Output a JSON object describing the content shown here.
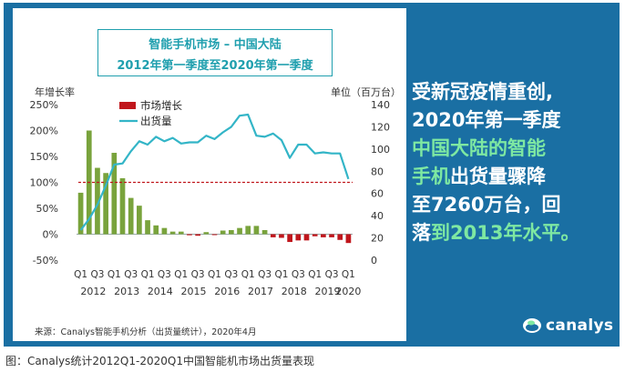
{
  "title": {
    "line1": "智能手机市场 – 中国大陆",
    "line2": "2012年第一季度至2020年第一季度"
  },
  "right_text": {
    "line1": "受新冠疫情重创,",
    "line2": "2020年第一季度",
    "line3": "中国大陆的智能",
    "line4a": "手机",
    "line4b": "出货量骤降",
    "line5": "至7260万台，回",
    "line6a": "落",
    "line6b": "到2013年水平。"
  },
  "source": "来源：Canalys智能手机分析（出货量统计），2020年4月",
  "logo": "canalys",
  "caption": "图：Canalys统计2012Q1-2020Q1中国智能机市场出货量表现",
  "colors": {
    "frame": "#1a6fa3",
    "bar_positive": "#79a33c",
    "bar_negative": "#c0161c",
    "line": "#33b5c7",
    "reference": "#c0161c",
    "title": "#1f9fae",
    "highlight": "#7ee8a2"
  },
  "chart_data": {
    "type": "bar",
    "left_axis": {
      "label": "年增长率",
      "min": -50,
      "max": 250,
      "ticks": [
        "-50%",
        "0%",
        "50%",
        "100%",
        "150%",
        "200%",
        "250%"
      ],
      "tick_values": [
        -50,
        0,
        50,
        100,
        150,
        200,
        250
      ]
    },
    "right_axis": {
      "label": "单位（百万台）",
      "min": 0,
      "max": 140,
      "ticks": [
        "0",
        "20",
        "40",
        "60",
        "80",
        "100",
        "120",
        "140"
      ],
      "tick_values": [
        0,
        20,
        40,
        60,
        80,
        100,
        120,
        140
      ]
    },
    "legend": [
      {
        "name": "市场增长",
        "kind": "bar"
      },
      {
        "name": "出货量",
        "kind": "line"
      }
    ],
    "reference_line": {
      "axis": "left",
      "value": 100,
      "style": "dashed"
    },
    "x_tick_labels": [
      "Q1",
      "Q3",
      "Q1",
      "Q3",
      "Q1",
      "Q3",
      "Q1",
      "Q3",
      "Q1",
      "Q3",
      "Q1",
      "Q3",
      "Q1",
      "Q3",
      "Q1",
      "Q3",
      "Q1"
    ],
    "year_labels": [
      "2012",
      "2013",
      "2014",
      "2015",
      "2016",
      "2017",
      "2018",
      "2019",
      "2020"
    ],
    "categories": [
      "2012Q1",
      "2012Q2",
      "2012Q3",
      "2012Q4",
      "2013Q1",
      "2013Q2",
      "2013Q3",
      "2013Q4",
      "2014Q1",
      "2014Q2",
      "2014Q3",
      "2014Q4",
      "2015Q1",
      "2015Q2",
      "2015Q3",
      "2015Q4",
      "2016Q1",
      "2016Q2",
      "2016Q3",
      "2016Q4",
      "2017Q1",
      "2017Q2",
      "2017Q3",
      "2017Q4",
      "2018Q1",
      "2018Q2",
      "2018Q3",
      "2018Q4",
      "2019Q1",
      "2019Q2",
      "2019Q3",
      "2019Q4",
      "2020Q1"
    ],
    "series": [
      {
        "name": "市场增长",
        "axis": "left",
        "type": "bar",
        "values": [
          80,
          200,
          128,
          118,
          157,
          108,
          70,
          55,
          27,
          17,
          12,
          5,
          5,
          -2,
          -3,
          4,
          -1,
          7,
          8,
          12,
          16,
          16,
          8,
          -6,
          -7,
          -15,
          -12,
          -12,
          -4,
          -6,
          -6,
          -11,
          -17
        ]
      },
      {
        "name": "出货量",
        "axis": "right",
        "type": "line",
        "values": [
          27,
          37,
          50,
          67,
          86,
          87,
          98,
          107,
          104,
          111,
          107,
          110,
          105,
          106,
          106,
          112,
          109,
          115,
          120,
          130,
          131,
          112,
          111,
          114,
          108,
          92,
          104,
          104,
          96,
          97,
          96,
          96,
          73
        ]
      }
    ]
  }
}
